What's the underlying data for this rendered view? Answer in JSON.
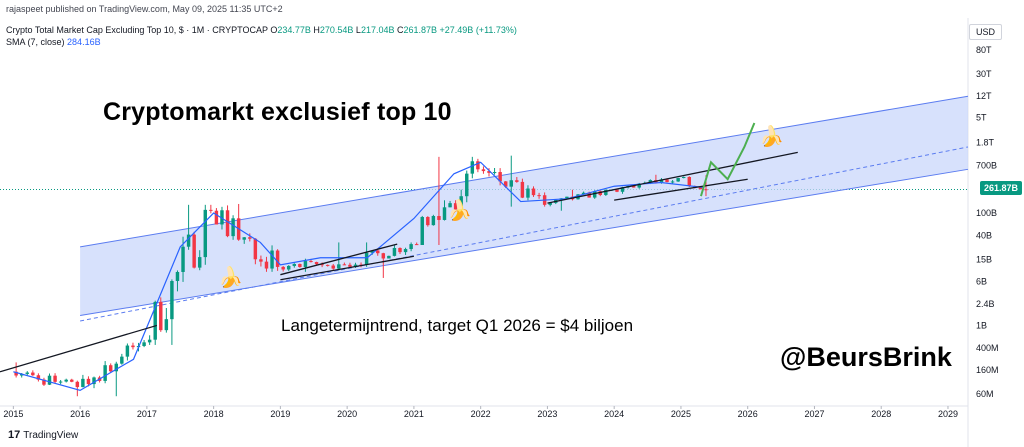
{
  "header": {
    "published": "rajaspeet published on TradingView.com, May 09, 2025 11:35 UTC+2",
    "symbol": "Crypto Total Market Cap Excluding Top 10, $ · 1M · CRYPTOCAP",
    "ohlc": {
      "o_label": "O",
      "o": "234.77B",
      "h_label": "H",
      "h": "270.54B",
      "l_label": "L",
      "l": "217.04B",
      "c_label": "C",
      "c": "261.87B",
      "change": "+27.49B (+11.73%)"
    },
    "sma_label": "SMA (7, close)",
    "sma_value": "284.16B"
  },
  "price_axis": {
    "currency": "USD",
    "labels": [
      "80T",
      "30T",
      "12T",
      "5T",
      "1.8T",
      "700B",
      "261.87B",
      "100B",
      "40B",
      "15B",
      "6B",
      "2.4B",
      "1B",
      "400M",
      "160M",
      "60M"
    ],
    "current_price": "261.87B"
  },
  "time_axis": {
    "labels": [
      "2015",
      "2016",
      "2017",
      "2018",
      "2019",
      "2020",
      "2021",
      "2022",
      "2023",
      "2024",
      "2025",
      "2026",
      "2027",
      "2028",
      "2029"
    ]
  },
  "annotations": {
    "title": "Cryptomarkt exclusief top 10",
    "subtitle": "Langetermijntrend, target Q1 2026 = $4 biljoen",
    "handle": "@BeursBrink"
  },
  "footer": {
    "logo_mark": "17",
    "logo_text": "TradingView"
  },
  "colors": {
    "up": "#089981",
    "down": "#f23645",
    "sma": "#2962ff",
    "channel_fill": "#c9d7fb",
    "channel_border": "#5b7cf0",
    "projection": "#4caf50",
    "trendline": "#131722"
  },
  "icons": [
    "banana-icon",
    "tradingview-logo-icon"
  ],
  "chart_data": {
    "type": "candlestick",
    "title": "Cryptomarkt exclusief top 10",
    "y_scale": "log",
    "y_unit": "USD",
    "ylim": [
      40000000,
      120000000000000
    ],
    "xlim": [
      2014.8,
      2029.3
    ],
    "current_price": 261870000000,
    "candles_yearly_ohlc": [
      {
        "year": 2015,
        "open": 150000000,
        "high": 220000000,
        "low": 55000000,
        "close": 80000000
      },
      {
        "year": 2016,
        "open": 80000000,
        "high": 550000000,
        "low": 55000000,
        "close": 500000000
      },
      {
        "year": 2017,
        "open": 500000000,
        "high": 140000000000,
        "low": 450000000,
        "close": 110000000000
      },
      {
        "year": 2018,
        "open": 110000000000,
        "high": 145000000000,
        "low": 9000000000,
        "close": 11000000000
      },
      {
        "year": 2019,
        "open": 11000000000,
        "high": 30000000000,
        "low": 9000000000,
        "close": 12000000000
      },
      {
        "year": 2020,
        "open": 12000000000,
        "high": 30000000000,
        "low": 7000000000,
        "close": 28000000000
      },
      {
        "year": 2021,
        "open": 28000000000,
        "high": 1000000000000,
        "low": 27000000000,
        "close": 600000000000
      },
      {
        "year": 2022,
        "open": 600000000000,
        "high": 1050000000000,
        "low": 130000000000,
        "close": 140000000000
      },
      {
        "year": 2023,
        "open": 140000000000,
        "high": 260000000000,
        "low": 110000000000,
        "close": 260000000000
      },
      {
        "year": 2024,
        "open": 260000000000,
        "high": 480000000000,
        "low": 220000000000,
        "close": 420000000000
      },
      {
        "year": 2025,
        "open": 420000000000,
        "high": 470000000000,
        "low": 200000000000,
        "close": 261870000000
      }
    ],
    "sma": {
      "name": "SMA (7, close)",
      "x": [
        2015.0,
        2016.0,
        2016.8,
        2017.5,
        2018.0,
        2018.7,
        2019.0,
        2019.6,
        2020.3,
        2021.0,
        2021.6,
        2022.0,
        2022.6,
        2023.3,
        2024.0,
        2024.7,
        2025.35
      ],
      "y": [
        150000000,
        70000000,
        250000000,
        25000000000,
        100000000000,
        30000000000,
        12000000000,
        16000000000,
        16000000000,
        80000000000,
        500000000000,
        800000000000,
        160000000000,
        180000000000,
        300000000000,
        350000000000,
        284160000000
      ]
    },
    "channel": {
      "upper": [
        [
          2016.0,
          25000000000
        ],
        [
          2029.3,
          12000000000000
        ]
      ],
      "middle": [
        [
          2016.0,
          1200000000
        ],
        [
          2029.3,
          1500000000000
        ]
      ],
      "lower": [
        [
          2016.0,
          1500000000
        ],
        [
          2029.3,
          600000000000
        ]
      ]
    },
    "trendlines": [
      {
        "from": [
          2014.8,
          150000000
        ],
        "to": [
          2017.15,
          1000000000
        ]
      },
      {
        "from": [
          2019.0,
          6500000000
        ],
        "to": [
          2021.0,
          17000000000
        ]
      },
      {
        "from": [
          2019.0,
          8000000000
        ],
        "to": [
          2020.75,
          28000000000
        ]
      },
      {
        "from": [
          2023.0,
          150000000000
        ],
        "to": [
          2026.75,
          1200000000000
        ]
      },
      {
        "from": [
          2024.0,
          170000000000
        ],
        "to": [
          2026.0,
          400000000000
        ]
      }
    ],
    "projection": {
      "name": "target path",
      "x": [
        2025.3,
        2025.45,
        2025.7,
        2025.95,
        2026.1
      ],
      "y": [
        200000000000,
        800000000000,
        400000000000,
        1500000000000,
        4000000000000
      ]
    }
  }
}
